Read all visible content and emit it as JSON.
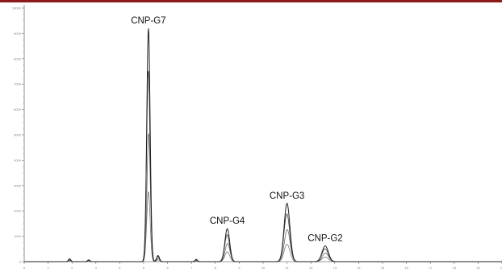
{
  "colors": {
    "top_bar": "#8b1a1a",
    "trace": "#222222",
    "trace_secondary": "#6a6a6a",
    "axis": "#777777"
  },
  "chart_data": {
    "type": "line",
    "title": "",
    "xlabel": "",
    "ylabel": "",
    "grid": false,
    "xlim": [
      0,
      20
    ],
    "ylim": [
      0,
      10000
    ],
    "x_ticks": [
      0,
      1,
      2,
      3,
      4,
      5,
      6,
      7,
      8,
      9,
      10,
      11,
      12,
      13,
      14,
      15,
      16,
      17,
      18,
      19,
      20
    ],
    "y_ticks": [
      0,
      1000,
      2000,
      3000,
      4000,
      5000,
      6000,
      7000,
      8000,
      9000,
      10000
    ],
    "peaks": [
      {
        "label": "CNP-G7",
        "x": 5.2,
        "height": 9200,
        "width": 0.07
      },
      {
        "label": "CNP-G4",
        "x": 8.5,
        "height": 1300,
        "width": 0.1
      },
      {
        "label": "CNP-G3",
        "x": 11.0,
        "height": 2300,
        "width": 0.12
      },
      {
        "label": "CNP-G2",
        "x": 12.6,
        "height": 620,
        "width": 0.13
      }
    ],
    "minor_peaks": [
      {
        "x": 1.9,
        "height": 110,
        "width": 0.05
      },
      {
        "x": 2.7,
        "height": 70,
        "width": 0.05
      },
      {
        "x": 5.6,
        "height": 240,
        "width": 0.06
      },
      {
        "x": 7.2,
        "height": 90,
        "width": 0.05
      }
    ]
  }
}
